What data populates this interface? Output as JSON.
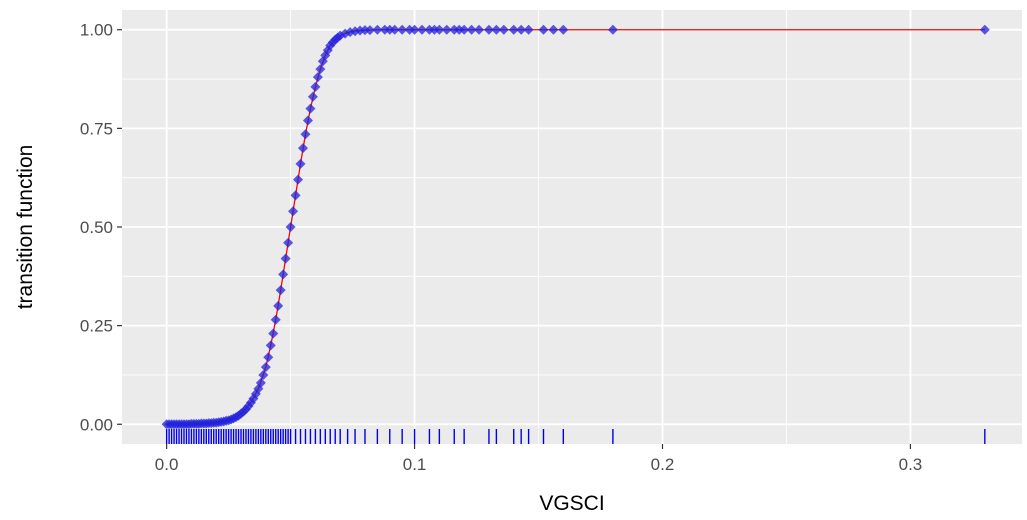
{
  "chart_data": {
    "type": "scatter",
    "xlabel": "VGSCI",
    "ylabel": "transition function",
    "xlim": [
      -0.018,
      0.345
    ],
    "ylim": [
      -0.05,
      1.05
    ],
    "grid": true,
    "legend": "none",
    "x_ticks": [
      {
        "value": 0.0,
        "label": "0.0"
      },
      {
        "value": 0.1,
        "label": "0.1"
      },
      {
        "value": 0.2,
        "label": "0.2"
      },
      {
        "value": 0.3,
        "label": "0.3"
      }
    ],
    "y_ticks": [
      {
        "value": 0.0,
        "label": "0.00"
      },
      {
        "value": 0.25,
        "label": "0.25"
      },
      {
        "value": 0.5,
        "label": "0.50"
      },
      {
        "value": 0.75,
        "label": "0.75"
      },
      {
        "value": 1.0,
        "label": "1.00"
      }
    ],
    "colors": {
      "panel": "#ebebeb",
      "grid": "#ffffff",
      "points": "#2222dd",
      "rug": "#0000ee",
      "curve": "#ff0000"
    },
    "series": [
      {
        "kind": "curve",
        "x": [
          0,
          0.004,
          0.008,
          0.012,
          0.016,
          0.02,
          0.024,
          0.028,
          0.031,
          0.034,
          0.037,
          0.04,
          0.042,
          0.044,
          0.046,
          0.048,
          0.05,
          0.052,
          0.054,
          0.056,
          0.058,
          0.06,
          0.062,
          0.064,
          0.066,
          0.068,
          0.07,
          0.073,
          0.076,
          0.08,
          0.085,
          0.09,
          0.1,
          0.12,
          0.15,
          0.2,
          0.25,
          0.3,
          0.33
        ],
        "y": [
          0.0,
          0.0,
          0.0,
          0.001,
          0.002,
          0.004,
          0.009,
          0.018,
          0.032,
          0.055,
          0.09,
          0.145,
          0.2,
          0.265,
          0.34,
          0.42,
          0.5,
          0.58,
          0.66,
          0.735,
          0.8,
          0.855,
          0.9,
          0.935,
          0.96,
          0.975,
          0.985,
          0.993,
          0.997,
          0.999,
          1.0,
          1.0,
          1.0,
          1.0,
          1.0,
          1.0,
          1.0,
          1.0,
          1.0
        ]
      },
      {
        "kind": "points",
        "x": [
          0,
          0.001,
          0.002,
          0.003,
          0.004,
          0.005,
          0.006,
          0.007,
          0.008,
          0.009,
          0.01,
          0.011,
          0.012,
          0.013,
          0.014,
          0.015,
          0.016,
          0.017,
          0.018,
          0.019,
          0.02,
          0.021,
          0.022,
          0.023,
          0.024,
          0.025,
          0.026,
          0.027,
          0.028,
          0.029,
          0.03,
          0.031,
          0.032,
          0.033,
          0.034,
          0.035,
          0.036,
          0.037,
          0.038,
          0.039,
          0.04,
          0.041,
          0.042,
          0.043,
          0.044,
          0.045,
          0.046,
          0.047,
          0.048,
          0.049,
          0.05,
          0.051,
          0.052,
          0.053,
          0.054,
          0.055,
          0.056,
          0.057,
          0.058,
          0.059,
          0.06,
          0.061,
          0.062,
          0.063,
          0.064,
          0.065,
          0.066,
          0.067,
          0.068,
          0.069,
          0.07,
          0.072,
          0.074,
          0.076,
          0.078,
          0.08,
          0.082,
          0.085,
          0.088,
          0.09,
          0.092,
          0.095,
          0.098,
          0.1,
          0.103,
          0.106,
          0.108,
          0.11,
          0.113,
          0.116,
          0.118,
          0.12,
          0.123,
          0.126,
          0.13,
          0.133,
          0.136,
          0.14,
          0.143,
          0.146,
          0.152,
          0.156,
          0.16,
          0.18,
          0.33
        ],
        "y": [
          0.0,
          0.0,
          0.0,
          0.0,
          0.0,
          0.0,
          0.0,
          0.0,
          0.0,
          0.0,
          0.001,
          0.001,
          0.001,
          0.001,
          0.002,
          0.002,
          0.002,
          0.003,
          0.003,
          0.004,
          0.004,
          0.005,
          0.006,
          0.007,
          0.009,
          0.01,
          0.012,
          0.015,
          0.018,
          0.022,
          0.027,
          0.032,
          0.038,
          0.046,
          0.055,
          0.065,
          0.077,
          0.09,
          0.105,
          0.125,
          0.145,
          0.17,
          0.2,
          0.23,
          0.265,
          0.3,
          0.34,
          0.38,
          0.42,
          0.46,
          0.5,
          0.54,
          0.58,
          0.62,
          0.66,
          0.7,
          0.735,
          0.77,
          0.8,
          0.83,
          0.855,
          0.88,
          0.9,
          0.92,
          0.935,
          0.948,
          0.96,
          0.968,
          0.975,
          0.98,
          0.985,
          0.99,
          0.994,
          0.996,
          0.998,
          0.999,
          0.999,
          1.0,
          1.0,
          1.0,
          1.0,
          1.0,
          1.0,
          1.0,
          1.0,
          1.0,
          1.0,
          1.0,
          1.0,
          1.0,
          1.0,
          1.0,
          1.0,
          1.0,
          1.0,
          1.0,
          1.0,
          1.0,
          1.0,
          1.0,
          1.0,
          1.0,
          1.0,
          1.0,
          1.0
        ]
      }
    ],
    "rug_x": [
      0,
      0.001,
      0.002,
      0.003,
      0.004,
      0.005,
      0.006,
      0.007,
      0.008,
      0.009,
      0.01,
      0.011,
      0.012,
      0.013,
      0.014,
      0.015,
      0.016,
      0.017,
      0.018,
      0.019,
      0.02,
      0.021,
      0.022,
      0.023,
      0.024,
      0.025,
      0.026,
      0.027,
      0.028,
      0.029,
      0.03,
      0.031,
      0.032,
      0.033,
      0.034,
      0.035,
      0.036,
      0.037,
      0.038,
      0.039,
      0.04,
      0.041,
      0.042,
      0.043,
      0.044,
      0.045,
      0.046,
      0.047,
      0.048,
      0.049,
      0.05,
      0.052,
      0.054,
      0.056,
      0.058,
      0.06,
      0.062,
      0.064,
      0.066,
      0.068,
      0.07,
      0.073,
      0.076,
      0.08,
      0.085,
      0.09,
      0.095,
      0.1,
      0.106,
      0.11,
      0.116,
      0.12,
      0.13,
      0.133,
      0.14,
      0.143,
      0.146,
      0.152,
      0.16,
      0.18,
      0.33
    ]
  }
}
